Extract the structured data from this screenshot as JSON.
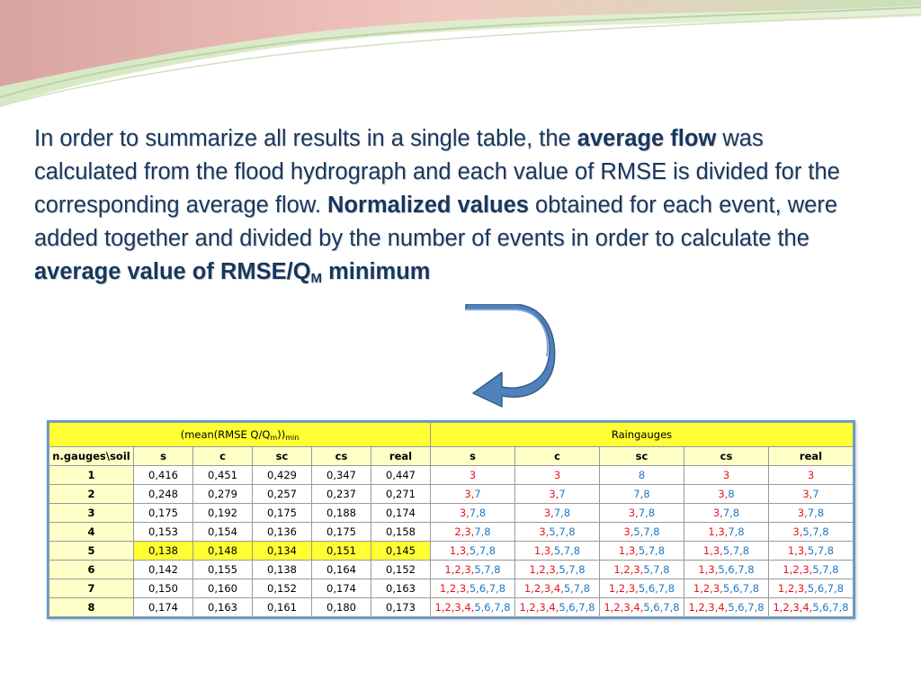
{
  "paragraph": [
    {
      "t": "In order to summarize all results in a single table, the ",
      "b": false
    },
    {
      "t": "average flow",
      "b": true
    },
    {
      "t": " was calculated from the flood hydrograph and each value of RMSE is divided for the corresponding average flow. ",
      "b": false
    },
    {
      "t": "Normalized values",
      "b": true
    },
    {
      "t": " obtained for each event, were added together and divided by the number of events in order to calculate the ",
      "b": false
    },
    {
      "t": "average value of RMSE/Q",
      "b": true
    },
    {
      "t": "M",
      "b": true,
      "sub": true
    },
    {
      "t": " minimum",
      "b": true
    }
  ],
  "table": {
    "group_left": {
      "pre": "(mean(RMSE Q/Q",
      "sub1": "m",
      "post": "))",
      "sub2": "min"
    },
    "group_right": "Raingauges",
    "corner": "n.gauges\\soil",
    "cols_left": [
      "s",
      "c",
      "sc",
      "cs",
      "real"
    ],
    "cols_right": [
      "s",
      "c",
      "sc",
      "cs",
      "real"
    ],
    "highlight_row": 5,
    "rows": [
      {
        "n": "1",
        "v": [
          "0,416",
          "0,451",
          "0,429",
          "0,347",
          "0,447"
        ],
        "g": [
          [
            [
              "3",
              "r"
            ]
          ],
          [
            [
              "3",
              "r"
            ]
          ],
          [
            [
              "8",
              "b"
            ]
          ],
          [
            [
              "3",
              "r"
            ]
          ],
          [
            [
              "3",
              "r"
            ]
          ]
        ]
      },
      {
        "n": "2",
        "v": [
          "0,248",
          "0,279",
          "0,257",
          "0,237",
          "0,271"
        ],
        "g": [
          [
            [
              "3,",
              "r"
            ],
            [
              "7",
              "b"
            ]
          ],
          [
            [
              "3,",
              "r"
            ],
            [
              "7",
              "b"
            ]
          ],
          [
            [
              "7,8",
              "b"
            ]
          ],
          [
            [
              "3,",
              "r"
            ],
            [
              "8",
              "b"
            ]
          ],
          [
            [
              "3,",
              "r"
            ],
            [
              "7",
              "b"
            ]
          ]
        ]
      },
      {
        "n": "3",
        "v": [
          "0,175",
          "0,192",
          "0,175",
          "0,188",
          "0,174"
        ],
        "g": [
          [
            [
              "3,",
              "r"
            ],
            [
              "7,8",
              "b"
            ]
          ],
          [
            [
              "3,",
              "r"
            ],
            [
              "7,8",
              "b"
            ]
          ],
          [
            [
              "3,",
              "r"
            ],
            [
              "7,8",
              "b"
            ]
          ],
          [
            [
              "3,",
              "r"
            ],
            [
              "7,8",
              "b"
            ]
          ],
          [
            [
              "3,",
              "r"
            ],
            [
              "7,8",
              "b"
            ]
          ]
        ]
      },
      {
        "n": "4",
        "v": [
          "0,153",
          "0,154",
          "0,136",
          "0,175",
          "0,158"
        ],
        "g": [
          [
            [
              "2,3,",
              "r"
            ],
            [
              "7,8",
              "b"
            ]
          ],
          [
            [
              "3,",
              "r"
            ],
            [
              "5,7,8",
              "b"
            ]
          ],
          [
            [
              "3,",
              "r"
            ],
            [
              "5,7,8",
              "b"
            ]
          ],
          [
            [
              "1,3,",
              "r"
            ],
            [
              "7,8",
              "b"
            ]
          ],
          [
            [
              "3,",
              "r"
            ],
            [
              "5,7,8",
              "b"
            ]
          ]
        ]
      },
      {
        "n": "5",
        "v": [
          "0,138",
          "0,148",
          "0,134",
          "0,151",
          "0,145"
        ],
        "g": [
          [
            [
              "1,3,",
              "r"
            ],
            [
              "5,7,8",
              "b"
            ]
          ],
          [
            [
              "1,3,",
              "r"
            ],
            [
              "5,7,8",
              "b"
            ]
          ],
          [
            [
              "1,3,",
              "r"
            ],
            [
              "5,7,8",
              "b"
            ]
          ],
          [
            [
              "1,3,",
              "r"
            ],
            [
              "5,7,8",
              "b"
            ]
          ],
          [
            [
              "1,3,",
              "r"
            ],
            [
              "5,7,8",
              "b"
            ]
          ]
        ]
      },
      {
        "n": "6",
        "v": [
          "0,142",
          "0,155",
          "0,138",
          "0,164",
          "0,152"
        ],
        "g": [
          [
            [
              "1,2,3,",
              "r"
            ],
            [
              "5,7,8",
              "b"
            ]
          ],
          [
            [
              "1,2,3,",
              "r"
            ],
            [
              "5,7,8",
              "b"
            ]
          ],
          [
            [
              "1,2,3,",
              "r"
            ],
            [
              "5,7,8",
              "b"
            ]
          ],
          [
            [
              "1,3,",
              "r"
            ],
            [
              "5,6,7,8",
              "b"
            ]
          ],
          [
            [
              "1,2,3,",
              "r"
            ],
            [
              "5,7,8",
              "b"
            ]
          ]
        ]
      },
      {
        "n": "7",
        "v": [
          "0,150",
          "0,160",
          "0,152",
          "0,174",
          "0,163"
        ],
        "g": [
          [
            [
              "1,2,3,",
              "r"
            ],
            [
              "5,6,7,8",
              "b"
            ]
          ],
          [
            [
              "1,2,3,4,",
              "r"
            ],
            [
              "5,7,8",
              "b"
            ]
          ],
          [
            [
              "1,2,3,",
              "r"
            ],
            [
              "5,6,7,8",
              "b"
            ]
          ],
          [
            [
              "1,2,3,",
              "r"
            ],
            [
              "5,6,7,8",
              "b"
            ]
          ],
          [
            [
              "1,2,3,",
              "r"
            ],
            [
              "5,6,7,8",
              "b"
            ]
          ]
        ]
      },
      {
        "n": "8",
        "v": [
          "0,174",
          "0,163",
          "0,161",
          "0,180",
          "0,173"
        ],
        "g": [
          [
            [
              "1,2,3,4,",
              "r"
            ],
            [
              "5,6,7,8",
              "b"
            ]
          ],
          [
            [
              "1,2,3,4,",
              "r"
            ],
            [
              "5,6,7,8",
              "b"
            ]
          ],
          [
            [
              "1,2,3,4,",
              "r"
            ],
            [
              "5,6,7,8",
              "b"
            ]
          ],
          [
            [
              "1,2,3,4,",
              "r"
            ],
            [
              "5,6,7,8",
              "b"
            ]
          ],
          [
            [
              "1,2,3,4,",
              "r"
            ],
            [
              "5,6,7,8",
              "b"
            ]
          ]
        ]
      }
    ]
  },
  "colors": {
    "text": "#17375e",
    "header_yellow": "#ffff33",
    "label_yellow": "#ffffc8",
    "red": "#e8141c",
    "blue": "#1f78c1",
    "arrow": "#4f81bd"
  }
}
